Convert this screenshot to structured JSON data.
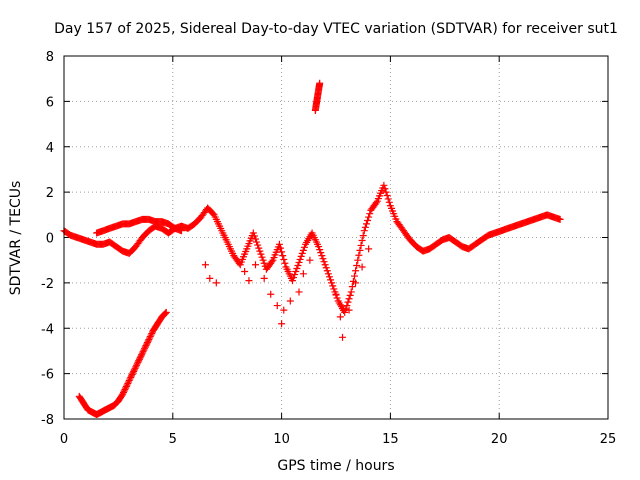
{
  "chart_data": {
    "type": "scatter",
    "title": "Day 157 of 2025, Sidereal Day-to-day VTEC variation (SDTVAR) for receiver sut1",
    "xlabel": "GPS time / hours",
    "ylabel": "SDTVAR / TECUs",
    "xlim": [
      0,
      25
    ],
    "ylim": [
      -8,
      8
    ],
    "xticks": [
      0,
      5,
      10,
      15,
      20,
      25
    ],
    "yticks": [
      -8,
      -6,
      -4,
      -2,
      0,
      2,
      4,
      6,
      8
    ],
    "grid": true,
    "marker": "+",
    "color": "#ff0000",
    "series": [
      {
        "name": "main-trace",
        "x": [
          0.0,
          0.3,
          0.6,
          0.9,
          1.2,
          1.5,
          1.8,
          2.1,
          2.4,
          2.7,
          3.0,
          3.3,
          3.6,
          3.9,
          4.2,
          4.5,
          4.8,
          5.1,
          5.4,
          5.7,
          6.0,
          6.3,
          6.6,
          6.9,
          7.2,
          7.5,
          7.8,
          8.1,
          8.4,
          8.7,
          9.0,
          9.3,
          9.6,
          9.9,
          10.2,
          10.5,
          10.8,
          11.1,
          11.4,
          11.7,
          12.0,
          12.3,
          12.6,
          12.9,
          13.2,
          13.5,
          13.8,
          14.1,
          14.4,
          14.7,
          15.0,
          15.3,
          15.6,
          15.9,
          16.2,
          16.5,
          16.8,
          17.1,
          17.4,
          17.7,
          18.0,
          18.3,
          18.6,
          18.9,
          19.2,
          19.5,
          19.8,
          20.1,
          20.4,
          20.7,
          21.0,
          21.3,
          21.6,
          21.9,
          22.2,
          22.5,
          22.8
        ],
        "y": [
          0.3,
          0.1,
          0.0,
          -0.1,
          -0.2,
          -0.3,
          -0.3,
          -0.2,
          -0.4,
          -0.6,
          -0.7,
          -0.4,
          0.0,
          0.3,
          0.5,
          0.4,
          0.2,
          0.4,
          0.5,
          0.4,
          0.6,
          0.9,
          1.3,
          1.0,
          0.4,
          -0.2,
          -0.8,
          -1.2,
          -0.5,
          0.2,
          -0.6,
          -1.4,
          -1.0,
          -0.3,
          -1.3,
          -1.9,
          -1.1,
          -0.3,
          0.2,
          -0.4,
          -1.2,
          -2.0,
          -2.8,
          -3.3,
          -2.4,
          -1.0,
          0.3,
          1.2,
          1.6,
          2.3,
          1.4,
          0.7,
          0.3,
          -0.1,
          -0.4,
          -0.6,
          -0.5,
          -0.3,
          -0.1,
          0.0,
          -0.2,
          -0.4,
          -0.5,
          -0.3,
          -0.1,
          0.1,
          0.2,
          0.3,
          0.4,
          0.5,
          0.6,
          0.7,
          0.8,
          0.9,
          1.0,
          0.9,
          0.8
        ]
      },
      {
        "name": "upper-loop",
        "x": [
          1.5,
          1.8,
          2.1,
          2.4,
          2.7,
          3.0,
          3.3,
          3.6,
          3.9,
          4.2,
          4.5,
          4.8,
          5.1,
          5.4
        ],
        "y": [
          0.2,
          0.3,
          0.4,
          0.5,
          0.6,
          0.6,
          0.7,
          0.8,
          0.8,
          0.7,
          0.7,
          0.6,
          0.4,
          0.3
        ]
      },
      {
        "name": "lower-branch",
        "x": [
          0.7,
          0.9,
          1.1,
          1.3,
          1.5,
          1.7,
          1.9,
          2.1,
          2.3,
          2.5,
          2.7,
          2.9,
          3.1,
          3.3,
          3.5,
          3.7,
          3.9,
          4.1,
          4.3,
          4.5,
          4.7
        ],
        "y": [
          -7.0,
          -7.3,
          -7.6,
          -7.7,
          -7.8,
          -7.7,
          -7.6,
          -7.5,
          -7.4,
          -7.2,
          -6.9,
          -6.5,
          -6.1,
          -5.7,
          -5.3,
          -4.9,
          -4.5,
          -4.1,
          -3.8,
          -3.5,
          -3.3
        ]
      },
      {
        "name": "high-spike",
        "x": [
          11.55,
          11.6,
          11.65,
          11.7,
          11.75
        ],
        "y": [
          5.6,
          5.9,
          6.2,
          6.5,
          6.8
        ]
      },
      {
        "name": "scatter-points",
        "x": [
          6.5,
          6.7,
          7.0,
          8.3,
          8.5,
          8.8,
          9.2,
          9.5,
          9.8,
          10.0,
          10.4,
          10.8,
          11.0,
          11.3,
          12.5,
          12.8,
          13.1,
          13.4,
          13.7,
          14.0,
          10.1,
          12.7
        ],
        "y": [
          -1.2,
          -1.8,
          -2.0,
          -1.5,
          -1.9,
          -1.2,
          -1.8,
          -2.5,
          -3.0,
          -3.8,
          -2.8,
          -2.4,
          -1.6,
          -1.0,
          -2.5,
          -4.4,
          -3.2,
          -2.0,
          -1.3,
          -0.5,
          -3.2,
          -3.5
        ]
      }
    ]
  }
}
